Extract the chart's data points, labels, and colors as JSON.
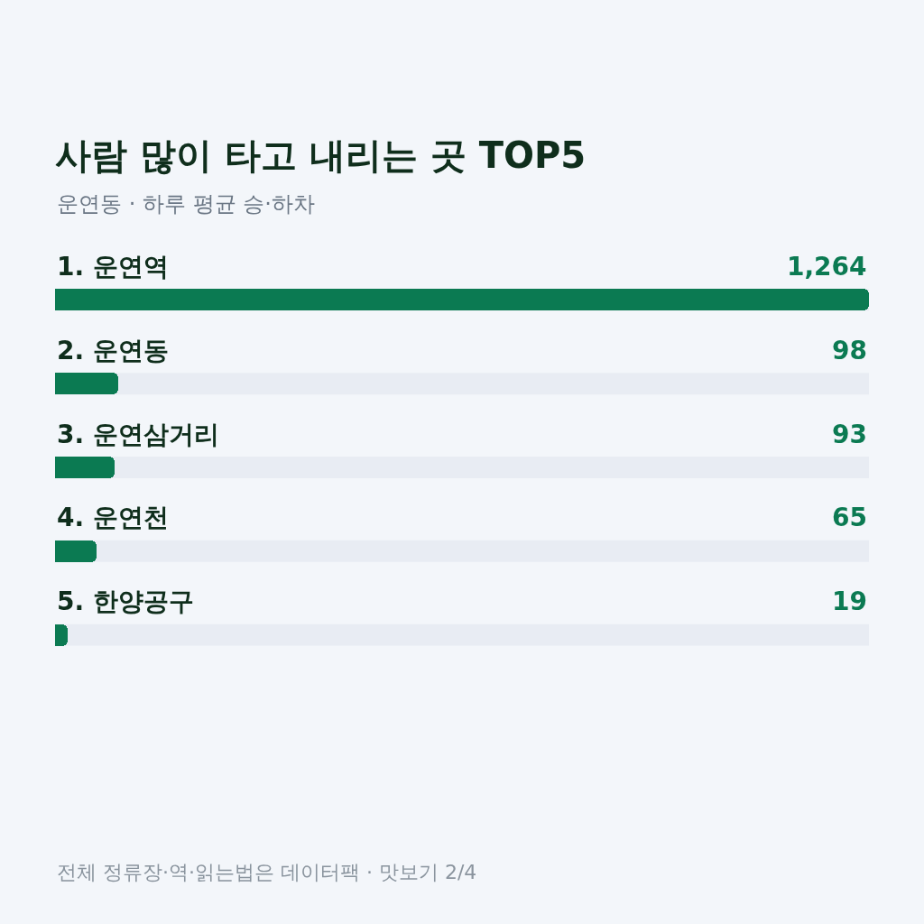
{
  "chart_data": {
    "type": "bar",
    "orientation": "horizontal",
    "title": "사람 많이 타고 내리는 곳 TOP5",
    "subtitle": "운연동 · 하루 평균 승·하차",
    "categories": [
      "1. 운연역",
      "2. 운연동",
      "3. 운연삼거리",
      "4. 운연천",
      "5. 한양공구"
    ],
    "values": [
      1264,
      98,
      93,
      65,
      19
    ],
    "color": "#0b7a52",
    "value_labels": [
      "1,264",
      "98",
      "93",
      "65",
      "19"
    ],
    "xlim": [
      0,
      1264
    ],
    "tick_labels": "y",
    "annotations": [
      "전체 정류장·역·읽는법은 데이터팩 · 맛보기 2/4"
    ]
  }
}
